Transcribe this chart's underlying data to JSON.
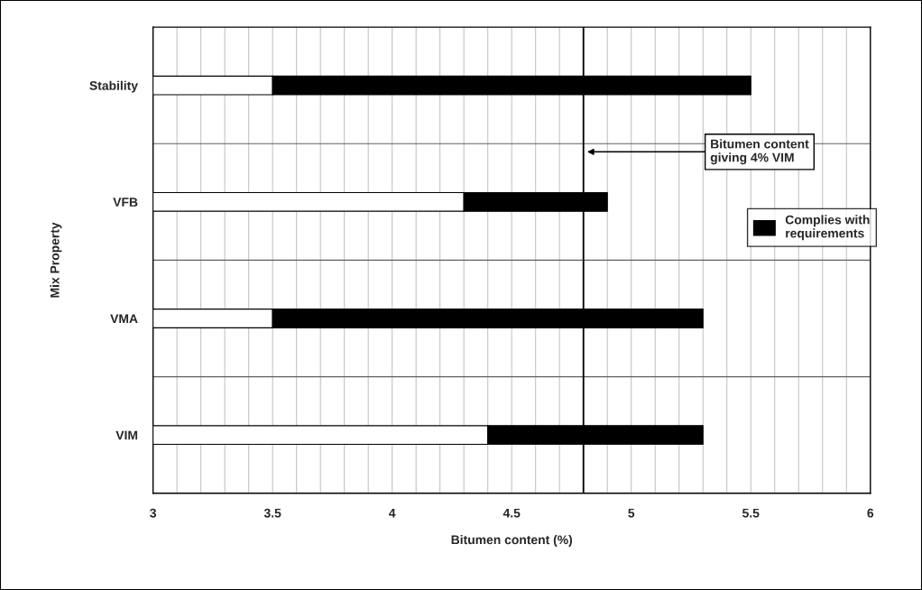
{
  "chart_data": {
    "type": "bar",
    "orientation": "horizontal",
    "xlabel": "Bitumen content (%)",
    "ylabel": "Mix Property",
    "categories": [
      "Stability",
      "VFB",
      "VMA",
      "VIM"
    ],
    "series": [
      {
        "color": "#ffffff",
        "base": [
          3,
          3,
          3,
          3
        ],
        "values": [
          0.5,
          1.3,
          0.5,
          1.4
        ]
      },
      {
        "name": "Complies with\nrequirements",
        "color": "#000000",
        "base": [
          3.5,
          4.3,
          3.5,
          4.4
        ],
        "values": [
          2.0,
          0.6,
          1.8,
          0.9
        ]
      }
    ],
    "xlim": [
      3,
      6
    ],
    "xticks": [
      3,
      {
        "value": 3.1,
        "label": null
      },
      {
        "value": 3.2,
        "label": null
      },
      {
        "value": 3.3,
        "label": null
      },
      {
        "value": 3.4,
        "label": null
      },
      3.5,
      {
        "value": 3.6,
        "label": null
      },
      {
        "value": 3.7,
        "label": null
      },
      {
        "value": 3.8,
        "label": null
      },
      {
        "value": 3.9,
        "label": null
      },
      4,
      {
        "value": 4.1,
        "label": null
      },
      {
        "value": 4.2,
        "label": null
      },
      {
        "value": 4.3,
        "label": null
      },
      {
        "value": 4.4,
        "label": null
      },
      4.5,
      {
        "value": 4.6,
        "label": null
      },
      {
        "value": 4.7,
        "label": null
      },
      {
        "value": 4.8,
        "label": null
      },
      {
        "value": 4.9,
        "label": null
      },
      5,
      {
        "value": 5.1,
        "label": null
      },
      {
        "value": 5.2,
        "label": null
      },
      {
        "value": 5.3,
        "label": null
      },
      {
        "value": 5.4,
        "label": null
      },
      5.5,
      {
        "value": 5.6,
        "label": null
      },
      {
        "value": 5.7,
        "label": null
      },
      {
        "value": 5.8,
        "label": null
      },
      {
        "value": 5.9,
        "label": null
      },
      6
    ],
    "ref_lines": [
      {
        "axis": "x",
        "value": 4.8,
        "color": "#000000",
        "label": "Bitumen content\ngiving 4% VIM"
      }
    ],
    "grid": true,
    "legend": "right"
  }
}
